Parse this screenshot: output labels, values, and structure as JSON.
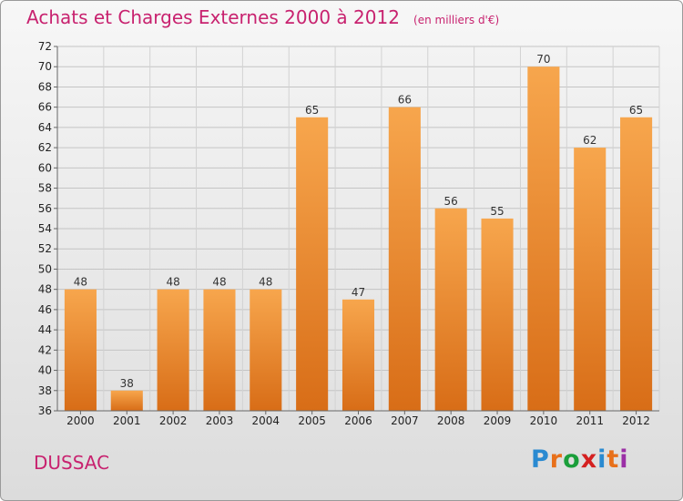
{
  "title": "Achats et Charges Externes 2000 à 2012",
  "unit": "(en milliers d'€)",
  "commune": "DUSSAC",
  "logo": {
    "text": "Proxiti",
    "letter_colors": [
      "#2a8ad1",
      "#e8701a",
      "#1a9e3a",
      "#d42020",
      "#2a8ad1",
      "#e8701a",
      "#9b2fa6"
    ]
  },
  "colors": {
    "bar_top": "#f7a64d",
    "bar_bottom": "#d86d17",
    "title": "#c8226f"
  },
  "chart_data": {
    "type": "bar",
    "categories": [
      "2000",
      "2001",
      "2002",
      "2003",
      "2004",
      "2005",
      "2006",
      "2007",
      "2008",
      "2009",
      "2010",
      "2011",
      "2012"
    ],
    "values": [
      48,
      38,
      48,
      48,
      48,
      65,
      47,
      66,
      56,
      55,
      70,
      62,
      65
    ],
    "title": "Achats et Charges Externes 2000 à 2012",
    "xlabel": "",
    "ylabel": "",
    "ylim": [
      36,
      72
    ],
    "ytick_step": 2,
    "grid": true,
    "legend": "none"
  }
}
